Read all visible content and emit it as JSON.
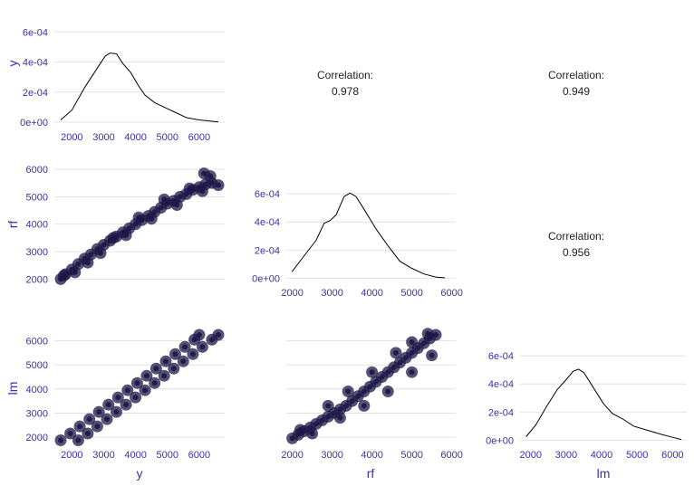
{
  "chart_data": {
    "type": "scatter-matrix",
    "variables": [
      "y",
      "rf",
      "lm"
    ],
    "colors": {
      "point": "#1c1747",
      "grid": "#dcdcdc",
      "tick_text": "#3b2fb0",
      "density_line": "#000000"
    },
    "diagonal": [
      {
        "variable": "y",
        "type": "density",
        "xlim": [
          1450,
          6800
        ],
        "ylim": [
          -3e-05,
          0.00071
        ],
        "x_ticks": [
          2000,
          3000,
          4000,
          5000,
          6000
        ],
        "x_tick_labels": [
          "2000",
          "3000",
          "4000",
          "5000",
          "6000"
        ],
        "y_ticks": [
          0,
          0.0002,
          0.0004,
          0.0006
        ],
        "y_tick_labels": [
          "0e+00",
          "2e-04",
          "4e-04",
          "6e-04"
        ],
        "curve": [
          [
            1650,
            1.5e-05
          ],
          [
            2000,
            8e-05
          ],
          [
            2400,
            0.00023
          ],
          [
            2800,
            0.00036
          ],
          [
            3050,
            0.00044
          ],
          [
            3200,
            0.00046
          ],
          [
            3400,
            0.000455
          ],
          [
            3600,
            0.00039
          ],
          [
            3850,
            0.00033
          ],
          [
            4100,
            0.00024
          ],
          [
            4300,
            0.00018
          ],
          [
            4600,
            0.00013
          ],
          [
            5000,
            9e-05
          ],
          [
            5300,
            6e-05
          ],
          [
            5600,
            3e-05
          ],
          [
            6000,
            1.5e-05
          ],
          [
            6600,
            2e-06
          ]
        ]
      },
      {
        "variable": "rf",
        "type": "density",
        "xlim": [
          1850,
          6100
        ],
        "ylim": [
          -3e-05,
          0.00071
        ],
        "x_ticks": [
          2000,
          3000,
          4000,
          5000,
          6000
        ],
        "x_tick_labels": [
          "2000",
          "3000",
          "4000",
          "5000",
          "6000"
        ],
        "y_ticks": [
          0,
          0.0002,
          0.0004,
          0.0006
        ],
        "y_tick_labels": [
          "0e+00",
          "2e-04",
          "4e-04",
          "6e-04"
        ],
        "curve": [
          [
            1990,
            4.5e-05
          ],
          [
            2300,
            0.00016
          ],
          [
            2600,
            0.00027
          ],
          [
            2800,
            0.00039
          ],
          [
            2950,
            0.00041
          ],
          [
            3100,
            0.00045
          ],
          [
            3300,
            0.00058
          ],
          [
            3450,
            0.000605
          ],
          [
            3600,
            0.00058
          ],
          [
            3800,
            0.00049
          ],
          [
            4100,
            0.00035
          ],
          [
            4400,
            0.00023
          ],
          [
            4700,
            0.00012
          ],
          [
            5000,
            7e-05
          ],
          [
            5300,
            3e-05
          ],
          [
            5600,
            8e-06
          ],
          [
            5830,
            2e-06
          ]
        ]
      },
      {
        "variable": "lm",
        "type": "density",
        "xlim": [
          1700,
          6400
        ],
        "ylim": [
          -3e-05,
          0.00071
        ],
        "x_ticks": [
          2000,
          3000,
          4000,
          5000,
          6000
        ],
        "x_tick_labels": [
          "2000",
          "3000",
          "4000",
          "5000",
          "6000"
        ],
        "y_ticks": [
          0,
          0.0002,
          0.0004,
          0.0006
        ],
        "y_tick_labels": [
          "0e+00",
          "2e-04",
          "4e-04",
          "6e-04"
        ],
        "curve": [
          [
            1870,
            2.5e-05
          ],
          [
            2150,
            0.00011
          ],
          [
            2450,
            0.00024
          ],
          [
            2750,
            0.00036
          ],
          [
            3000,
            0.00043
          ],
          [
            3200,
            0.00049
          ],
          [
            3350,
            0.000505
          ],
          [
            3500,
            0.00048
          ],
          [
            3750,
            0.00038
          ],
          [
            4050,
            0.00026
          ],
          [
            4300,
            0.00019
          ],
          [
            4600,
            0.00015
          ],
          [
            4900,
            0.0001
          ],
          [
            5300,
            7e-05
          ],
          [
            5700,
            4e-05
          ],
          [
            6000,
            2e-05
          ],
          [
            6250,
            5e-06
          ]
        ]
      }
    ],
    "scatter": [
      {
        "x_var": "y",
        "y_var": "rf",
        "xlim": [
          1450,
          6800
        ],
        "ylim": [
          1850,
          6100
        ],
        "x_ticks": [
          2000,
          3000,
          4000,
          5000,
          6000
        ],
        "y_ticks": [
          2000,
          3000,
          4000,
          5000,
          6000
        ],
        "y_tick_labels": [
          "2000",
          "3000",
          "4000",
          "5000",
          "6000"
        ],
        "points": [
          [
            1650,
            2000
          ],
          [
            1800,
            2180
          ],
          [
            2000,
            2350
          ],
          [
            2200,
            2550
          ],
          [
            2400,
            2750
          ],
          [
            2600,
            2900
          ],
          [
            2800,
            3100
          ],
          [
            3000,
            3250
          ],
          [
            3200,
            3400
          ],
          [
            3400,
            3550
          ],
          [
            3600,
            3700
          ],
          [
            3800,
            3850
          ],
          [
            4000,
            4000
          ],
          [
            4200,
            4150
          ],
          [
            4400,
            4300
          ],
          [
            4600,
            4450
          ],
          [
            4800,
            4600
          ],
          [
            5000,
            4750
          ],
          [
            5200,
            4850
          ],
          [
            5400,
            5000
          ],
          [
            5600,
            5100
          ],
          [
            5800,
            5250
          ],
          [
            6000,
            5350
          ],
          [
            6200,
            5450
          ],
          [
            6400,
            5500
          ],
          [
            6600,
            5420
          ],
          [
            6350,
            5750
          ],
          [
            6150,
            5850
          ],
          [
            1750,
            2130
          ],
          [
            2100,
            2250
          ],
          [
            2500,
            2600
          ],
          [
            2900,
            2950
          ],
          [
            3300,
            3500
          ],
          [
            3700,
            3600
          ],
          [
            4100,
            4250
          ],
          [
            4500,
            4200
          ],
          [
            4900,
            4900
          ],
          [
            5300,
            4700
          ],
          [
            5700,
            5300
          ],
          [
            6100,
            5200
          ]
        ]
      },
      {
        "x_var": "y",
        "y_var": "lm",
        "xlim": [
          1450,
          6800
        ],
        "ylim": [
          1700,
          6400
        ],
        "x_ticks": [
          2000,
          3000,
          4000,
          5000,
          6000
        ],
        "x_tick_labels": [
          "2000",
          "3000",
          "4000",
          "5000",
          "6000"
        ],
        "y_ticks": [
          2000,
          3000,
          4000,
          5000,
          6000
        ],
        "y_tick_labels": [
          "2000",
          "3000",
          "4000",
          "5000",
          "6000"
        ],
        "points": [
          [
            1650,
            1870
          ],
          [
            1950,
            2150
          ],
          [
            2250,
            2450
          ],
          [
            2550,
            2750
          ],
          [
            2850,
            3050
          ],
          [
            3150,
            3350
          ],
          [
            3450,
            3650
          ],
          [
            3750,
            3950
          ],
          [
            4050,
            4250
          ],
          [
            4350,
            4550
          ],
          [
            4650,
            4850
          ],
          [
            4950,
            5150
          ],
          [
            5250,
            5450
          ],
          [
            5550,
            5750
          ],
          [
            5850,
            6050
          ],
          [
            6000,
            6250
          ],
          [
            2200,
            1870
          ],
          [
            2500,
            2150
          ],
          [
            2800,
            2450
          ],
          [
            3100,
            2750
          ],
          [
            3400,
            3050
          ],
          [
            3700,
            3350
          ],
          [
            4000,
            3650
          ],
          [
            4300,
            3950
          ],
          [
            4600,
            4250
          ],
          [
            4900,
            4550
          ],
          [
            5200,
            4850
          ],
          [
            5500,
            5150
          ],
          [
            5800,
            5450
          ],
          [
            6100,
            5750
          ],
          [
            6400,
            6050
          ],
          [
            6600,
            6250
          ]
        ]
      },
      {
        "x_var": "rf",
        "y_var": "lm",
        "xlim": [
          1850,
          6100
        ],
        "ylim": [
          1700,
          6400
        ],
        "x_ticks": [
          2000,
          3000,
          4000,
          5000,
          6000
        ],
        "x_tick_labels": [
          "2000",
          "3000",
          "4000",
          "5000",
          "6000"
        ],
        "y_ticks": [
          2000,
          3000,
          4000,
          5000,
          6000
        ],
        "points": [
          [
            2000,
            1950
          ],
          [
            2150,
            2100
          ],
          [
            2300,
            2250
          ],
          [
            2450,
            2400
          ],
          [
            2600,
            2550
          ],
          [
            2750,
            2700
          ],
          [
            2900,
            2850
          ],
          [
            3050,
            3000
          ],
          [
            3200,
            3150
          ],
          [
            3350,
            3300
          ],
          [
            3500,
            3500
          ],
          [
            3650,
            3700
          ],
          [
            3800,
            3900
          ],
          [
            3950,
            4100
          ],
          [
            4100,
            4300
          ],
          [
            4250,
            4500
          ],
          [
            4400,
            4700
          ],
          [
            4550,
            4900
          ],
          [
            4700,
            5100
          ],
          [
            4850,
            5300
          ],
          [
            5000,
            5500
          ],
          [
            5150,
            5700
          ],
          [
            5300,
            5900
          ],
          [
            5450,
            6100
          ],
          [
            5600,
            6250
          ],
          [
            5400,
            6300
          ],
          [
            5000,
            5950
          ],
          [
            4600,
            5500
          ],
          [
            4000,
            4700
          ],
          [
            3400,
            3900
          ],
          [
            2900,
            3300
          ],
          [
            3200,
            2800
          ],
          [
            3800,
            3300
          ],
          [
            4400,
            3900
          ],
          [
            5000,
            4700
          ],
          [
            5500,
            5400
          ],
          [
            2500,
            2150
          ],
          [
            2200,
            2300
          ]
        ]
      }
    ],
    "correlations": [
      {
        "pair": "y-rf",
        "label": "Correlation:",
        "value": "0.978"
      },
      {
        "pair": "y-lm",
        "label": "Correlation:",
        "value": "0.949"
      },
      {
        "pair": "rf-lm",
        "label": "Correlation:",
        "value": "0.956"
      }
    ],
    "axis_titles": {
      "x": [
        "y",
        "rf",
        "lm"
      ],
      "y": [
        "y",
        "rf",
        "lm"
      ]
    }
  }
}
